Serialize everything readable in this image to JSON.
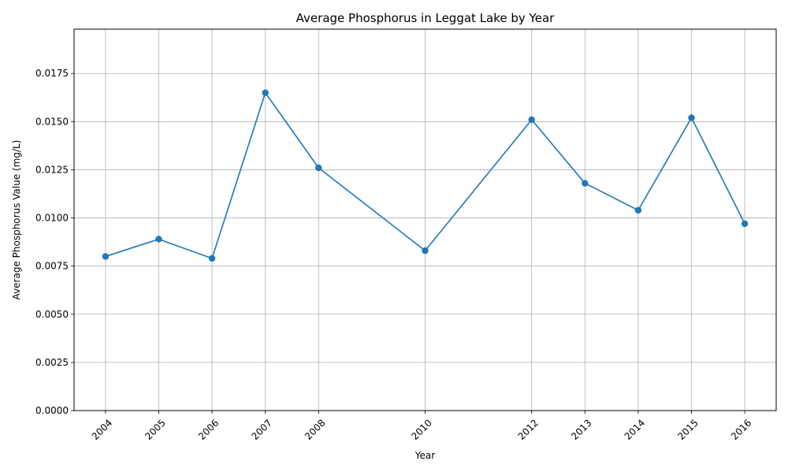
{
  "chart_data": {
    "type": "line",
    "title": "Average Phosphorus in Leggat Lake by Year",
    "xlabel": "Year",
    "ylabel": "Average Phosphorus Value (mg/L)",
    "x": [
      2004,
      2005,
      2006,
      2007,
      2008,
      2010,
      2012,
      2013,
      2014,
      2015,
      2016
    ],
    "x_tick_labels": [
      "2004",
      "2005",
      "2006",
      "2007",
      "2008",
      "2010",
      "2012",
      "2013",
      "2014",
      "2015",
      "2016"
    ],
    "series": [
      {
        "values": [
          0.008,
          0.0089,
          0.0079,
          0.0165,
          0.0126,
          0.0083,
          0.0151,
          0.0118,
          0.0104,
          0.0152,
          0.0097
        ],
        "color": "#1f77b4",
        "marker": "circle"
      }
    ],
    "y_ticks": [
      0.0,
      0.0025,
      0.005,
      0.0075,
      0.01,
      0.0125,
      0.015,
      0.0175
    ],
    "y_tick_labels": [
      "0.0000",
      "0.0025",
      "0.0050",
      "0.0075",
      "0.0100",
      "0.0125",
      "0.0150",
      "0.0175"
    ],
    "xlim": [
      2003.41,
      2016.59
    ],
    "ylim": [
      0,
      0.0198
    ],
    "grid": true,
    "x_tick_rotation": 45
  }
}
